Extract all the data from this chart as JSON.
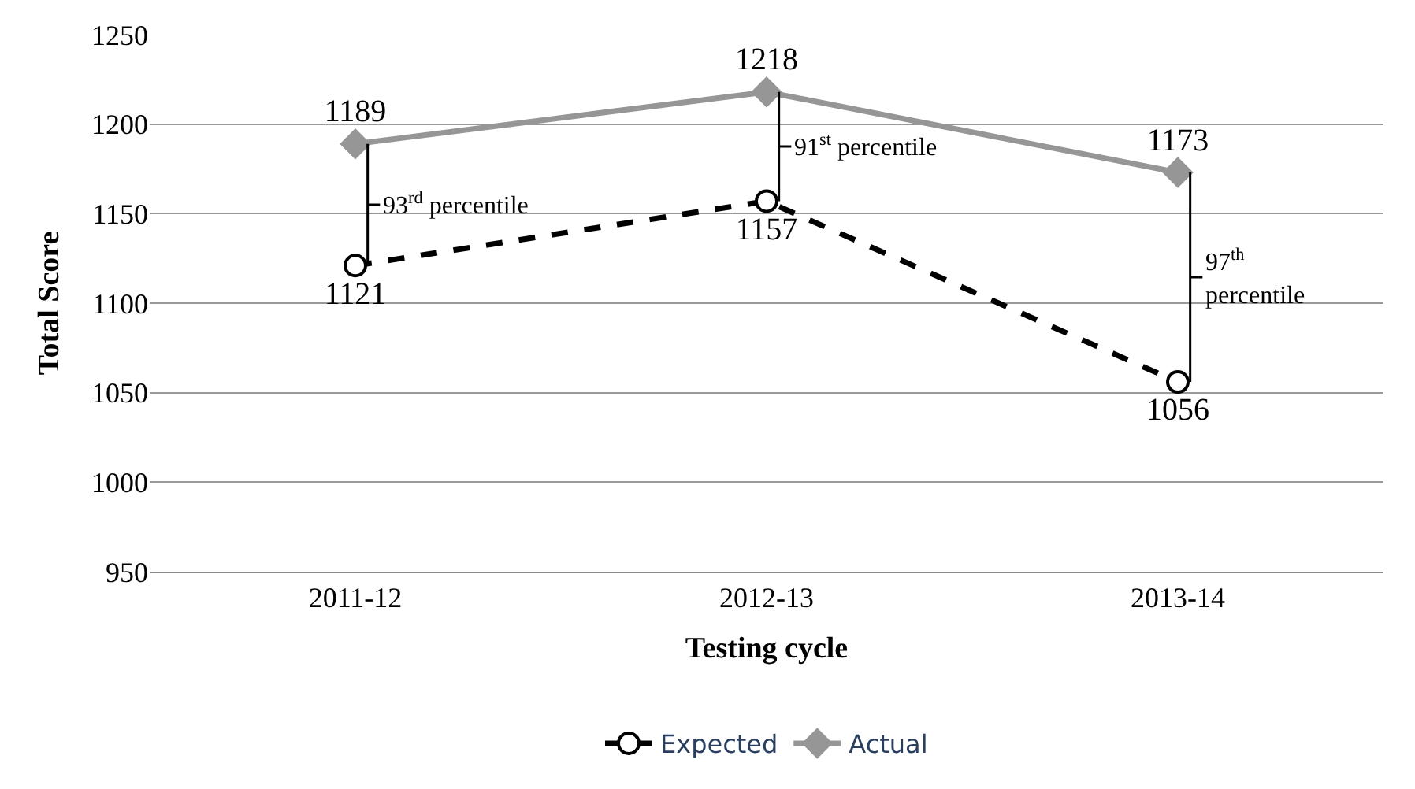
{
  "chart_data": {
    "type": "line",
    "xlabel": "Testing cycle",
    "ylabel": "Total Score",
    "categories": [
      "2011-12",
      "2012-13",
      "2013-14"
    ],
    "series": [
      {
        "name": "Expected",
        "color": "#000000",
        "values": [
          1121,
          1157,
          1056
        ],
        "marker": "circle",
        "line_style": "dashed"
      },
      {
        "name": "Actual",
        "color": "#969696",
        "values": [
          1189,
          1218,
          1173
        ],
        "marker": "diamond",
        "line_style": "solid"
      }
    ],
    "data_labels": true,
    "ylim": [
      950,
      1250
    ],
    "yticks": [
      950,
      1000,
      1050,
      1100,
      1150,
      1200,
      1250
    ],
    "grid": "y",
    "legend": "bottom",
    "annotations": [
      "93$^{rd}$ percentile",
      "91$^{st}$ percentile",
      "97$^{th}$ percentile"
    ]
  }
}
